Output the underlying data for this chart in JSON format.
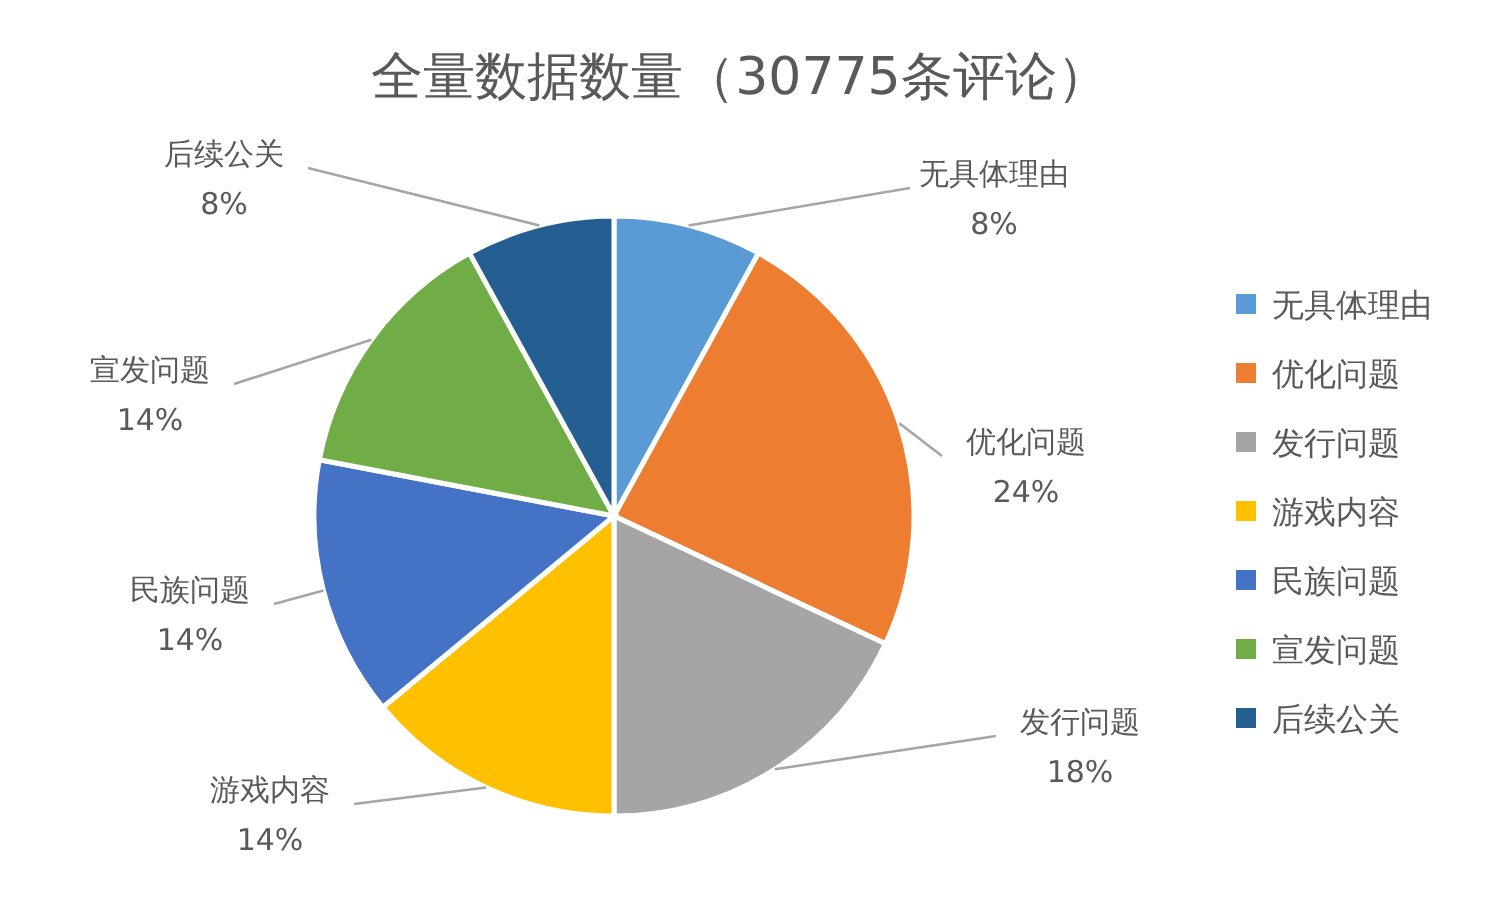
{
  "chart_data": {
    "type": "pie",
    "title": "全量数据数量（30775条评论）",
    "categories": [
      "无具体理由",
      "优化问题",
      "发行问题",
      "游戏内容",
      "民族问题",
      "宣发问题",
      "后续公关"
    ],
    "values": [
      8,
      24,
      18,
      14,
      14,
      14,
      8
    ],
    "colors": [
      "#5b9bd5",
      "#ed7d31",
      "#a5a5a5",
      "#ffc000",
      "#4472c4",
      "#70ad47",
      "#255e91"
    ],
    "value_labels": [
      "8%",
      "24%",
      "18%",
      "14%",
      "14%",
      "14%",
      "8%"
    ],
    "legend": "right"
  }
}
